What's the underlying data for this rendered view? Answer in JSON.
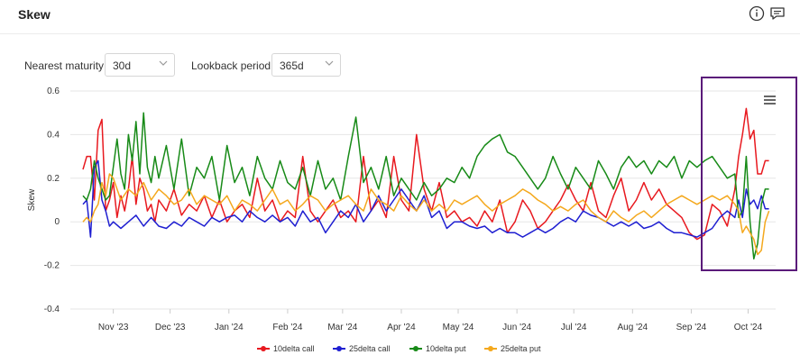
{
  "header": {
    "title": "Skew",
    "icons": [
      "info-icon",
      "feedback-icon"
    ]
  },
  "controls": {
    "maturity_label": "Nearest maturity",
    "maturity_value": "30d",
    "lookback_label": "Lookback period",
    "lookback_value": "365d"
  },
  "colors": {
    "10delta call": "#e8191f",
    "25delta call": "#1f1fd1",
    "10delta put": "#178a17",
    "25delta put": "#f4a81d",
    "highlight_box": "#5a1a7a",
    "grid": "#e6e6e6"
  },
  "chart_data": {
    "type": "line",
    "title": "",
    "xlabel": "",
    "ylabel": "Skew",
    "ylim": [
      -0.4,
      0.6
    ],
    "yticks": [
      "0.6",
      "0.4",
      "0.2",
      "0",
      "-0.2",
      "-0.4"
    ],
    "xlim_days": [
      0,
      366
    ],
    "xticks": [
      {
        "label": "Nov '23",
        "day": 16
      },
      {
        "label": "Dec '23",
        "day": 46
      },
      {
        "label": "Jan '24",
        "day": 77
      },
      {
        "label": "Feb '24",
        "day": 108
      },
      {
        "label": "Mar '24",
        "day": 137
      },
      {
        "label": "Apr '24",
        "day": 168
      },
      {
        "label": "May '24",
        "day": 198
      },
      {
        "label": "Jun '24",
        "day": 229
      },
      {
        "label": "Jul '24",
        "day": 259
      },
      {
        "label": "Aug '24",
        "day": 290
      },
      {
        "label": "Sep '24",
        "day": 321
      },
      {
        "label": "Oct '24",
        "day": 351
      }
    ],
    "grid": true,
    "legend_position": "bottom",
    "series": [
      {
        "name": "10delta call",
        "x": [
          0,
          2,
          4,
          6,
          8,
          10,
          12,
          14,
          16,
          18,
          20,
          22,
          24,
          26,
          28,
          30,
          32,
          34,
          36,
          38,
          40,
          44,
          48,
          52,
          56,
          60,
          64,
          68,
          72,
          76,
          80,
          84,
          88,
          92,
          96,
          100,
          104,
          108,
          112,
          116,
          120,
          124,
          128,
          132,
          136,
          140,
          144,
          148,
          152,
          156,
          160,
          164,
          168,
          172,
          176,
          180,
          184,
          188,
          192,
          196,
          200,
          204,
          208,
          212,
          216,
          220,
          224,
          228,
          232,
          236,
          240,
          244,
          248,
          252,
          256,
          260,
          264,
          268,
          272,
          276,
          280,
          284,
          288,
          292,
          296,
          300,
          304,
          308,
          312,
          316,
          320,
          324,
          328,
          332,
          336,
          340,
          344,
          346,
          348,
          350,
          352,
          354,
          356,
          358,
          360,
          362
        ],
        "y": [
          0.24,
          0.3,
          0.3,
          0.1,
          0.42,
          0.47,
          0.05,
          0.1,
          0.18,
          0.02,
          0.12,
          0.05,
          0.15,
          0.3,
          0.08,
          0.2,
          0.15,
          0.05,
          0.08,
          0.0,
          0.1,
          0.05,
          0.15,
          0.03,
          0.08,
          0.05,
          0.12,
          0.02,
          0.1,
          0.0,
          0.05,
          0.08,
          0.02,
          0.2,
          0.05,
          0.1,
          0.0,
          0.05,
          0.02,
          0.3,
          0.05,
          0.0,
          0.05,
          0.1,
          0.02,
          0.05,
          0.0,
          0.3,
          0.05,
          0.1,
          0.02,
          0.3,
          0.1,
          0.05,
          0.4,
          0.15,
          0.05,
          0.18,
          0.02,
          0.05,
          0.0,
          0.02,
          -0.02,
          0.05,
          0.0,
          0.1,
          -0.05,
          0.0,
          0.1,
          0.05,
          -0.03,
          0.0,
          0.05,
          0.1,
          0.17,
          0.1,
          0.05,
          0.18,
          0.05,
          0.02,
          0.12,
          0.2,
          0.05,
          0.1,
          0.18,
          0.1,
          0.15,
          0.08,
          0.05,
          0.02,
          -0.05,
          -0.08,
          -0.06,
          0.08,
          0.05,
          -0.02,
          0.15,
          0.3,
          0.4,
          0.52,
          0.38,
          0.42,
          0.22,
          0.22,
          0.28,
          0.28
        ]
      },
      {
        "name": "25delta call",
        "x": [
          0,
          2,
          4,
          6,
          8,
          10,
          12,
          14,
          16,
          20,
          24,
          28,
          32,
          36,
          40,
          44,
          48,
          52,
          56,
          60,
          64,
          68,
          72,
          76,
          80,
          84,
          88,
          92,
          96,
          100,
          104,
          108,
          112,
          116,
          120,
          124,
          128,
          132,
          136,
          140,
          144,
          148,
          152,
          156,
          160,
          164,
          168,
          172,
          176,
          180,
          184,
          188,
          192,
          196,
          200,
          204,
          208,
          212,
          216,
          220,
          224,
          228,
          232,
          236,
          240,
          244,
          248,
          252,
          256,
          260,
          264,
          268,
          272,
          276,
          280,
          284,
          288,
          292,
          296,
          300,
          304,
          308,
          312,
          316,
          320,
          324,
          328,
          332,
          336,
          340,
          344,
          346,
          348,
          350,
          352,
          354,
          356,
          358,
          360,
          362
        ],
        "y": [
          0.08,
          0.1,
          -0.07,
          0.25,
          0.28,
          0.1,
          0.05,
          -0.02,
          0.0,
          -0.03,
          0.0,
          0.03,
          -0.02,
          0.02,
          -0.02,
          -0.03,
          0.0,
          -0.02,
          0.02,
          0.0,
          -0.02,
          0.02,
          0.0,
          0.02,
          0.03,
          0.0,
          0.05,
          0.02,
          0.0,
          0.03,
          0.0,
          0.02,
          -0.02,
          0.05,
          0.0,
          0.02,
          -0.05,
          0.0,
          0.05,
          0.02,
          0.08,
          0.0,
          0.05,
          0.12,
          0.05,
          0.1,
          0.15,
          0.1,
          0.05,
          0.12,
          0.02,
          0.05,
          -0.03,
          0.0,
          0.0,
          -0.02,
          -0.03,
          -0.02,
          -0.05,
          -0.03,
          -0.05,
          -0.05,
          -0.07,
          -0.05,
          -0.03,
          -0.05,
          -0.03,
          0.0,
          0.02,
          0.0,
          0.05,
          0.03,
          0.02,
          0.0,
          -0.02,
          0.0,
          -0.02,
          0.0,
          -0.03,
          -0.02,
          0.0,
          -0.03,
          -0.05,
          -0.05,
          -0.06,
          -0.07,
          -0.05,
          -0.03,
          0.02,
          0.05,
          0.02,
          0.1,
          0.02,
          0.15,
          0.08,
          0.1,
          0.06,
          0.12,
          0.06,
          0.06
        ]
      },
      {
        "name": "10delta put",
        "x": [
          0,
          2,
          4,
          6,
          8,
          10,
          12,
          14,
          16,
          18,
          20,
          22,
          24,
          26,
          28,
          30,
          32,
          34,
          36,
          38,
          40,
          44,
          48,
          52,
          56,
          60,
          64,
          68,
          72,
          76,
          80,
          84,
          88,
          92,
          96,
          100,
          104,
          108,
          112,
          116,
          120,
          124,
          128,
          132,
          136,
          140,
          144,
          148,
          152,
          156,
          160,
          164,
          168,
          172,
          176,
          180,
          184,
          188,
          192,
          196,
          200,
          204,
          208,
          212,
          216,
          220,
          224,
          228,
          232,
          236,
          240,
          244,
          248,
          252,
          256,
          260,
          264,
          268,
          272,
          276,
          280,
          284,
          288,
          292,
          296,
          300,
          304,
          308,
          312,
          316,
          320,
          324,
          328,
          332,
          336,
          340,
          344,
          346,
          348,
          350,
          352,
          354,
          356,
          358,
          360,
          362
        ],
        "y": [
          0.12,
          0.1,
          0.15,
          0.28,
          0.2,
          0.15,
          0.1,
          0.12,
          0.25,
          0.38,
          0.22,
          0.15,
          0.4,
          0.28,
          0.46,
          0.22,
          0.5,
          0.25,
          0.18,
          0.3,
          0.2,
          0.35,
          0.15,
          0.38,
          0.12,
          0.25,
          0.2,
          0.3,
          0.1,
          0.35,
          0.18,
          0.25,
          0.12,
          0.3,
          0.2,
          0.15,
          0.28,
          0.18,
          0.15,
          0.25,
          0.12,
          0.28,
          0.15,
          0.2,
          0.1,
          0.3,
          0.48,
          0.18,
          0.25,
          0.15,
          0.3,
          0.12,
          0.2,
          0.15,
          0.1,
          0.18,
          0.12,
          0.15,
          0.2,
          0.18,
          0.25,
          0.2,
          0.3,
          0.35,
          0.38,
          0.4,
          0.32,
          0.3,
          0.25,
          0.2,
          0.15,
          0.2,
          0.3,
          0.22,
          0.15,
          0.25,
          0.2,
          0.15,
          0.28,
          0.22,
          0.15,
          0.25,
          0.3,
          0.25,
          0.28,
          0.22,
          0.28,
          0.25,
          0.3,
          0.2,
          0.28,
          0.25,
          0.28,
          0.3,
          0.25,
          0.2,
          0.22,
          0.02,
          0.05,
          0.3,
          0.0,
          -0.17,
          -0.1,
          0.08,
          0.15,
          0.15
        ]
      },
      {
        "name": "25delta put",
        "x": [
          0,
          2,
          4,
          6,
          8,
          10,
          12,
          14,
          16,
          20,
          24,
          28,
          32,
          36,
          40,
          44,
          48,
          52,
          56,
          60,
          64,
          68,
          72,
          76,
          80,
          84,
          88,
          92,
          96,
          100,
          104,
          108,
          112,
          116,
          120,
          124,
          128,
          132,
          136,
          140,
          144,
          148,
          152,
          156,
          160,
          164,
          168,
          172,
          176,
          180,
          184,
          188,
          192,
          196,
          200,
          204,
          208,
          212,
          216,
          220,
          224,
          228,
          232,
          236,
          240,
          244,
          248,
          252,
          256,
          260,
          264,
          268,
          272,
          276,
          280,
          284,
          288,
          292,
          296,
          300,
          304,
          308,
          312,
          316,
          320,
          324,
          328,
          332,
          336,
          340,
          344,
          346,
          348,
          350,
          352,
          354,
          356,
          358,
          360,
          362
        ],
        "y": [
          0.0,
          0.02,
          0.0,
          0.05,
          0.08,
          0.18,
          0.12,
          0.22,
          0.2,
          0.1,
          0.15,
          0.12,
          0.18,
          0.1,
          0.15,
          0.12,
          0.08,
          0.1,
          0.15,
          0.08,
          0.12,
          0.1,
          0.08,
          0.12,
          0.05,
          0.1,
          0.08,
          0.05,
          0.1,
          0.15,
          0.08,
          0.1,
          0.05,
          0.08,
          0.12,
          0.1,
          0.05,
          0.08,
          0.1,
          0.12,
          0.08,
          0.05,
          0.15,
          0.1,
          0.08,
          0.05,
          0.12,
          0.08,
          0.05,
          0.1,
          0.05,
          0.08,
          0.05,
          0.1,
          0.08,
          0.1,
          0.12,
          0.08,
          0.05,
          0.08,
          0.1,
          0.12,
          0.15,
          0.13,
          0.1,
          0.08,
          0.05,
          0.07,
          0.05,
          0.08,
          0.1,
          0.05,
          0.02,
          0.0,
          0.05,
          0.02,
          0.0,
          0.03,
          0.05,
          0.02,
          0.05,
          0.08,
          0.1,
          0.12,
          0.1,
          0.08,
          0.1,
          0.12,
          0.1,
          0.12,
          0.08,
          0.05,
          -0.05,
          -0.02,
          -0.05,
          -0.08,
          -0.15,
          -0.13,
          0.0,
          0.05
        ]
      }
    ]
  }
}
